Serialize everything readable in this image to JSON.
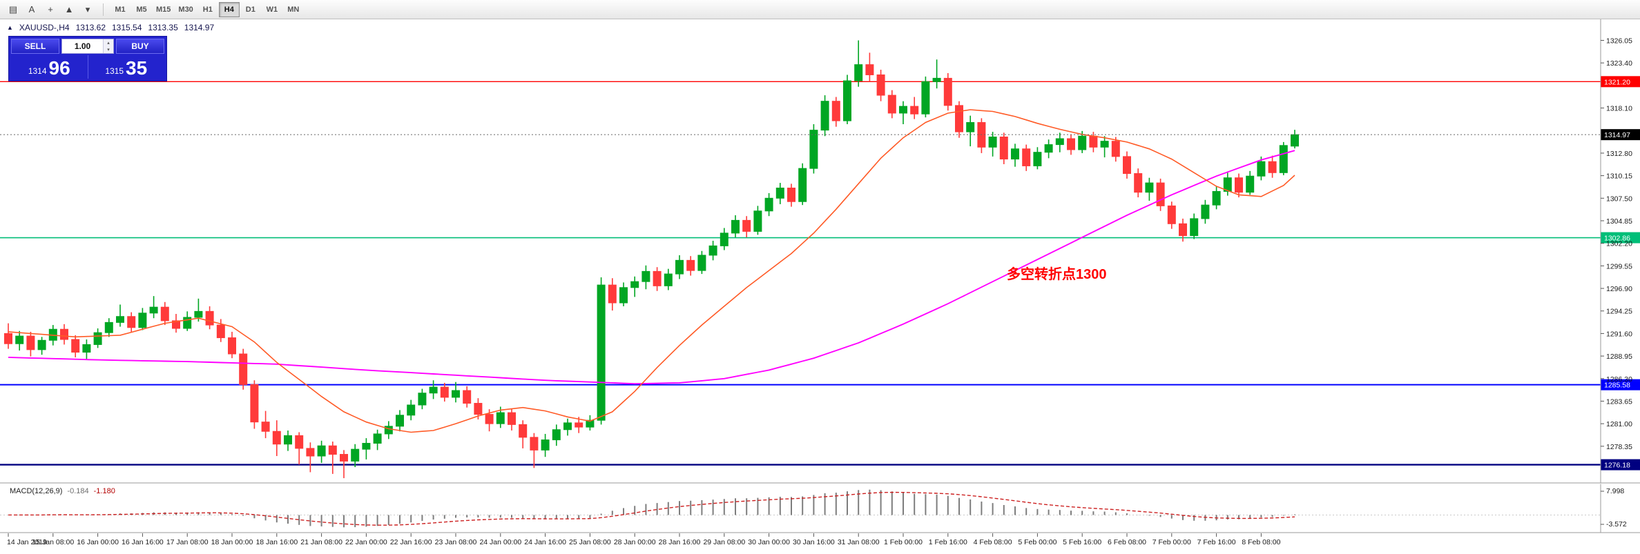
{
  "toolbar": {
    "icons": [
      {
        "name": "chart-bars-icon",
        "glyph": "▤"
      },
      {
        "name": "text-label-icon",
        "glyph": "A"
      },
      {
        "name": "crosshair-ic6on",
        "glyph": "+"
      },
      {
        "name": "draw-objects-icon",
        "glyph": "▲"
      },
      {
        "name": "dropdown-arrow-icon",
        "glyph": "▾"
      }
    ],
    "timeframes": [
      "M1",
      "M5",
      "M15",
      "M30",
      "H1",
      "H4",
      "D1",
      "W1",
      "MN"
    ],
    "active_timeframe": "H4"
  },
  "chart": {
    "symbol_line": {
      "collapse_icon": "▲",
      "symbol": "XAUUSD-,H4",
      "open": "1313.62",
      "high": "1315.54",
      "low": "1313.35",
      "close": "1314.97"
    },
    "trade_panel": {
      "sell_label": "SELL",
      "buy_label": "BUY",
      "lot_value": "1.00",
      "spin_up_icon": "▴",
      "spin_down_icon": "▾",
      "sell_price_major": "1314",
      "sell_price_pips": "96",
      "buy_price_major": "1315",
      "buy_price_pips": "35"
    },
    "annotation": {
      "text": "多空转折点1300",
      "color": "#FF0000"
    },
    "current_price": {
      "value": 1314.97,
      "label": "1314.97",
      "bg": "#000000"
    },
    "hlines": [
      {
        "price": 1321.2,
        "label": "1321.20",
        "color": "#FF0000",
        "width": 1.4
      },
      {
        "price": 1302.86,
        "label": "1302.86",
        "color": "#00BE78",
        "width": 1.6
      },
      {
        "price": 1285.58,
        "label": "1285.58",
        "color": "#0000FF",
        "width": 2
      },
      {
        "price": 1276.18,
        "label": "1276.18",
        "color": "#000080",
        "width": 2.4
      }
    ],
    "y_axis": {
      "labels": [
        1326.05,
        1323.4,
        1320.75,
        1318.1,
        1315.45,
        1312.8,
        1310.15,
        1307.5,
        1304.85,
        1302.2,
        1299.55,
        1296.9,
        1294.25,
        1291.6,
        1288.95,
        1286.3,
        1283.65,
        1281.0,
        1278.35,
        1275.7
      ]
    },
    "x_axis": {
      "labels": [
        "14 Jan 2019",
        "15 Jan 08:00",
        "16 Jan 00:00",
        "16 Jan 16:00",
        "17 Jan 08:00",
        "18 Jan 00:00",
        "18 Jan 16:00",
        "21 Jan 08:00",
        "22 Jan 00:00",
        "22 Jan 16:00",
        "23 Jan 08:00",
        "24 Jan 00:00",
        "24 Jan 16:00",
        "25 Jan 08:00",
        "28 Jan 00:00",
        "28 Jan 16:00",
        "29 Jan 08:00",
        "30 Jan 00:00",
        "30 Jan 16:00",
        "31 Jan 08:00",
        "1 Feb 00:00",
        "1 Feb 16:00",
        "4 Feb 08:00",
        "5 Feb 00:00",
        "5 Feb 16:00",
        "6 Feb 08:00",
        "7 Feb 00:00",
        "7 Feb 16:00",
        "8 Feb 08:00"
      ]
    }
  },
  "macd": {
    "name": "MACD(12,26,9)",
    "main_value": "-0.184",
    "signal_value": "-1.180",
    "axis_labels": [
      "7.998",
      "-3.572"
    ],
    "histogram_color": "#7D7D7D",
    "signal_color": "#CC2020"
  },
  "colors": {
    "bull": "#00A623",
    "bear": "#FF3A3A",
    "background": "#FFFFFF",
    "axis_text": "#1A1A1A"
  },
  "chart_data": {
    "type": "candlestick",
    "symbol": "XAUUSD-",
    "timeframe": "H4",
    "ohlc_format": [
      "open",
      "high",
      "low",
      "close"
    ],
    "ylim": [
      1274.2,
      1328.2
    ],
    "candles": [
      [
        1291.6,
        1292.8,
        1289.8,
        1290.4
      ],
      [
        1290.4,
        1291.9,
        1289.6,
        1291.3
      ],
      [
        1291.3,
        1291.8,
        1288.9,
        1289.7
      ],
      [
        1289.7,
        1291.2,
        1289.1,
        1290.8
      ],
      [
        1290.8,
        1292.6,
        1290.2,
        1292.1
      ],
      [
        1292.1,
        1292.7,
        1290.3,
        1290.9
      ],
      [
        1290.9,
        1291.4,
        1288.8,
        1289.4
      ],
      [
        1289.4,
        1290.9,
        1288.6,
        1290.3
      ],
      [
        1290.3,
        1292.2,
        1289.9,
        1291.7
      ],
      [
        1291.7,
        1293.4,
        1291.2,
        1292.9
      ],
      [
        1292.9,
        1295.0,
        1292.4,
        1293.6
      ],
      [
        1293.6,
        1294.1,
        1291.8,
        1292.3
      ],
      [
        1292.3,
        1294.6,
        1292.0,
        1294.0
      ],
      [
        1294.0,
        1296.0,
        1293.4,
        1294.7
      ],
      [
        1294.7,
        1295.3,
        1292.6,
        1293.1
      ],
      [
        1293.1,
        1293.9,
        1291.7,
        1292.2
      ],
      [
        1292.2,
        1294.2,
        1291.9,
        1293.5
      ],
      [
        1293.5,
        1295.7,
        1293.0,
        1294.2
      ],
      [
        1294.2,
        1294.8,
        1292.1,
        1292.6
      ],
      [
        1292.6,
        1293.3,
        1290.6,
        1291.1
      ],
      [
        1291.1,
        1291.8,
        1288.7,
        1289.2
      ],
      [
        1289.2,
        1289.8,
        1285.0,
        1285.6
      ],
      [
        1285.6,
        1286.1,
        1280.4,
        1281.2
      ],
      [
        1281.2,
        1282.5,
        1279.3,
        1280.1
      ],
      [
        1280.1,
        1281.4,
        1277.2,
        1278.6
      ],
      [
        1278.6,
        1280.2,
        1277.8,
        1279.6
      ],
      [
        1279.6,
        1280.0,
        1276.2,
        1278.1
      ],
      [
        1278.1,
        1278.8,
        1275.3,
        1277.2
      ],
      [
        1277.2,
        1279.0,
        1276.4,
        1278.4
      ],
      [
        1278.4,
        1278.9,
        1275.1,
        1277.4
      ],
      [
        1277.4,
        1277.9,
        1274.6,
        1276.6
      ],
      [
        1276.6,
        1278.6,
        1275.9,
        1278.0
      ],
      [
        1278.0,
        1279.3,
        1276.8,
        1278.7
      ],
      [
        1278.7,
        1280.3,
        1277.9,
        1279.8
      ],
      [
        1279.8,
        1281.3,
        1279.2,
        1280.7
      ],
      [
        1280.7,
        1282.6,
        1280.1,
        1282.0
      ],
      [
        1282.0,
        1283.8,
        1281.4,
        1283.2
      ],
      [
        1283.2,
        1285.1,
        1282.7,
        1284.6
      ],
      [
        1284.6,
        1286.1,
        1283.9,
        1285.3
      ],
      [
        1285.3,
        1285.8,
        1283.6,
        1284.1
      ],
      [
        1284.1,
        1285.9,
        1283.5,
        1284.9
      ],
      [
        1284.9,
        1285.4,
        1282.9,
        1283.4
      ],
      [
        1283.4,
        1284.0,
        1281.5,
        1282.1
      ],
      [
        1282.1,
        1282.7,
        1280.1,
        1281.0
      ],
      [
        1281.0,
        1283.0,
        1280.5,
        1282.3
      ],
      [
        1282.3,
        1282.8,
        1280.2,
        1280.9
      ],
      [
        1280.9,
        1281.4,
        1278.1,
        1279.4
      ],
      [
        1279.4,
        1279.9,
        1275.8,
        1277.9
      ],
      [
        1277.9,
        1279.8,
        1277.1,
        1279.1
      ],
      [
        1279.1,
        1280.9,
        1278.4,
        1280.3
      ],
      [
        1280.3,
        1281.6,
        1279.6,
        1281.1
      ],
      [
        1281.1,
        1281.8,
        1279.9,
        1280.6
      ],
      [
        1280.6,
        1282.0,
        1280.2,
        1281.4
      ],
      [
        1281.4,
        1298.2,
        1280.9,
        1297.3
      ],
      [
        1297.3,
        1298.1,
        1294.3,
        1295.2
      ],
      [
        1295.2,
        1297.6,
        1294.8,
        1297.0
      ],
      [
        1297.0,
        1298.3,
        1295.9,
        1297.7
      ],
      [
        1297.7,
        1299.6,
        1296.8,
        1298.9
      ],
      [
        1298.9,
        1299.4,
        1296.6,
        1297.2
      ],
      [
        1297.2,
        1299.2,
        1296.7,
        1298.6
      ],
      [
        1298.6,
        1300.8,
        1298.0,
        1300.2
      ],
      [
        1300.2,
        1300.7,
        1298.4,
        1299.0
      ],
      [
        1299.0,
        1301.3,
        1298.6,
        1300.8
      ],
      [
        1300.8,
        1302.5,
        1300.2,
        1301.9
      ],
      [
        1301.9,
        1304.0,
        1301.4,
        1303.4
      ],
      [
        1303.4,
        1305.5,
        1302.9,
        1304.9
      ],
      [
        1304.9,
        1305.4,
        1302.9,
        1303.6
      ],
      [
        1303.6,
        1306.6,
        1303.2,
        1306.0
      ],
      [
        1306.0,
        1308.1,
        1305.4,
        1307.5
      ],
      [
        1307.5,
        1309.3,
        1306.8,
        1308.7
      ],
      [
        1308.7,
        1309.2,
        1306.5,
        1307.1
      ],
      [
        1307.1,
        1311.6,
        1306.7,
        1311.0
      ],
      [
        1311.0,
        1316.2,
        1310.4,
        1315.5
      ],
      [
        1315.5,
        1319.6,
        1314.8,
        1318.9
      ],
      [
        1318.9,
        1319.4,
        1315.9,
        1316.6
      ],
      [
        1316.6,
        1322.0,
        1316.2,
        1321.3
      ],
      [
        1321.3,
        1326.05,
        1320.6,
        1323.2
      ],
      [
        1323.2,
        1324.6,
        1321.2,
        1322.0
      ],
      [
        1322.0,
        1322.6,
        1318.9,
        1319.6
      ],
      [
        1319.6,
        1320.2,
        1316.9,
        1317.5
      ],
      [
        1317.5,
        1318.9,
        1316.2,
        1318.3
      ],
      [
        1318.3,
        1319.4,
        1316.8,
        1317.4
      ],
      [
        1317.4,
        1321.8,
        1317.0,
        1321.2
      ],
      [
        1321.2,
        1323.8,
        1320.4,
        1321.6
      ],
      [
        1321.6,
        1322.2,
        1317.8,
        1318.4
      ],
      [
        1318.4,
        1318.9,
        1314.6,
        1315.3
      ],
      [
        1315.3,
        1317.2,
        1313.6,
        1316.4
      ],
      [
        1316.4,
        1316.9,
        1312.8,
        1313.5
      ],
      [
        1313.5,
        1315.3,
        1312.4,
        1314.7
      ],
      [
        1314.7,
        1315.2,
        1311.5,
        1312.1
      ],
      [
        1312.1,
        1313.9,
        1311.2,
        1313.3
      ],
      [
        1313.3,
        1313.8,
        1310.7,
        1311.3
      ],
      [
        1311.3,
        1313.5,
        1310.9,
        1312.9
      ],
      [
        1312.9,
        1314.4,
        1312.2,
        1313.8
      ],
      [
        1313.8,
        1315.2,
        1312.9,
        1314.5
      ],
      [
        1314.5,
        1315.0,
        1312.6,
        1313.2
      ],
      [
        1313.2,
        1315.4,
        1312.8,
        1314.8
      ],
      [
        1314.8,
        1315.3,
        1312.9,
        1313.5
      ],
      [
        1313.5,
        1314.8,
        1312.3,
        1314.2
      ],
      [
        1314.2,
        1314.7,
        1311.8,
        1312.4
      ],
      [
        1312.4,
        1313.0,
        1309.8,
        1310.4
      ],
      [
        1310.4,
        1311.0,
        1307.6,
        1308.2
      ],
      [
        1308.2,
        1309.9,
        1307.2,
        1309.3
      ],
      [
        1309.3,
        1309.8,
        1306.0,
        1306.6
      ],
      [
        1306.6,
        1307.1,
        1303.9,
        1304.5
      ],
      [
        1304.5,
        1305.1,
        1302.4,
        1303.1
      ],
      [
        1303.1,
        1305.7,
        1302.7,
        1305.1
      ],
      [
        1305.1,
        1307.3,
        1304.5,
        1306.7
      ],
      [
        1306.7,
        1308.9,
        1306.2,
        1308.3
      ],
      [
        1308.3,
        1310.5,
        1307.8,
        1309.9
      ],
      [
        1309.9,
        1310.4,
        1307.6,
        1308.2
      ],
      [
        1308.2,
        1310.7,
        1307.9,
        1310.1
      ],
      [
        1310.1,
        1312.4,
        1309.6,
        1311.8
      ],
      [
        1311.8,
        1312.5,
        1309.9,
        1310.5
      ],
      [
        1310.5,
        1314.1,
        1310.2,
        1313.7
      ],
      [
        1313.62,
        1315.54,
        1313.35,
        1314.97
      ]
    ],
    "ma_fast": {
      "name": "fast-ma",
      "color": "#FF5A26",
      "points": [
        [
          0,
          1291.8
        ],
        [
          6,
          1291.2
        ],
        [
          10,
          1291.4
        ],
        [
          14,
          1292.8
        ],
        [
          17,
          1293.4
        ],
        [
          20,
          1292.4
        ],
        [
          22,
          1290.6
        ],
        [
          24,
          1288.2
        ],
        [
          26,
          1286.2
        ],
        [
          28,
          1284.2
        ],
        [
          30,
          1282.4
        ],
        [
          32,
          1281.2
        ],
        [
          34,
          1280.4
        ],
        [
          36,
          1280.0
        ],
        [
          38,
          1280.2
        ],
        [
          40,
          1281.0
        ],
        [
          42,
          1281.9
        ],
        [
          44,
          1282.6
        ],
        [
          46,
          1282.9
        ],
        [
          48,
          1282.5
        ],
        [
          50,
          1281.8
        ],
        [
          52,
          1281.3
        ],
        [
          54,
          1282.4
        ],
        [
          56,
          1284.8
        ],
        [
          58,
          1287.6
        ],
        [
          60,
          1290.2
        ],
        [
          62,
          1292.6
        ],
        [
          64,
          1294.8
        ],
        [
          66,
          1297.0
        ],
        [
          68,
          1299.0
        ],
        [
          70,
          1301.0
        ],
        [
          72,
          1303.4
        ],
        [
          74,
          1306.2
        ],
        [
          76,
          1309.2
        ],
        [
          78,
          1312.2
        ],
        [
          80,
          1314.6
        ],
        [
          82,
          1316.4
        ],
        [
          84,
          1317.5
        ],
        [
          86,
          1317.9
        ],
        [
          88,
          1317.7
        ],
        [
          90,
          1317.1
        ],
        [
          92,
          1316.3
        ],
        [
          94,
          1315.6
        ],
        [
          96,
          1315.0
        ],
        [
          98,
          1314.6
        ],
        [
          100,
          1314.1
        ],
        [
          102,
          1313.3
        ],
        [
          104,
          1312.1
        ],
        [
          106,
          1310.5
        ],
        [
          108,
          1308.9
        ],
        [
          110,
          1307.9
        ],
        [
          112,
          1307.7
        ],
        [
          114,
          1309.0
        ],
        [
          115,
          1310.2
        ]
      ]
    },
    "ma_slow": {
      "name": "slow-ma",
      "color": "#FF00FF",
      "points": [
        [
          0,
          1288.8
        ],
        [
          8,
          1288.5
        ],
        [
          16,
          1288.3
        ],
        [
          24,
          1288.0
        ],
        [
          32,
          1287.3
        ],
        [
          40,
          1286.7
        ],
        [
          48,
          1286.1
        ],
        [
          52,
          1285.9
        ],
        [
          56,
          1285.7
        ],
        [
          60,
          1285.8
        ],
        [
          64,
          1286.3
        ],
        [
          68,
          1287.3
        ],
        [
          72,
          1288.7
        ],
        [
          76,
          1290.5
        ],
        [
          80,
          1292.7
        ],
        [
          84,
          1295.1
        ],
        [
          88,
          1297.7
        ],
        [
          92,
          1300.3
        ],
        [
          96,
          1302.9
        ],
        [
          100,
          1305.5
        ],
        [
          104,
          1307.9
        ],
        [
          108,
          1310.1
        ],
        [
          112,
          1312.0
        ],
        [
          115,
          1313.1
        ]
      ]
    },
    "macd_params": [
      12,
      26,
      9
    ]
  }
}
